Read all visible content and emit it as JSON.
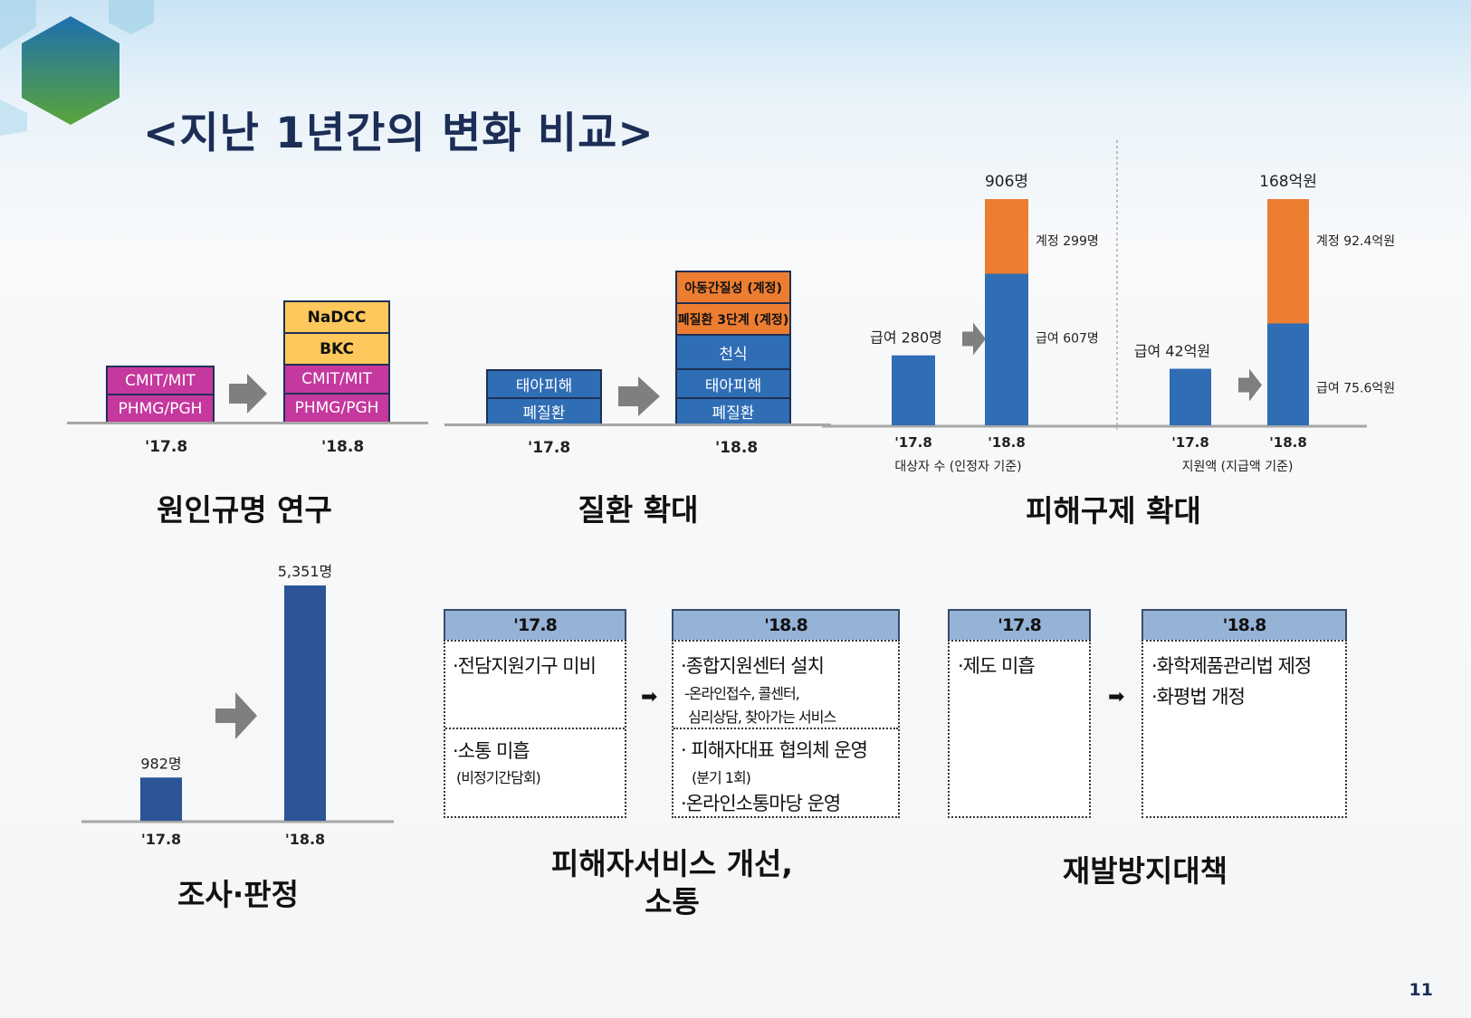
{
  "title": "<지난 1년간의 변화 비교>",
  "page_number": "11",
  "colors": {
    "magenta": "#c5389e",
    "yellow": "#ffc85c",
    "blue": "#2f6db5",
    "orange": "#ed7d31",
    "navy_bar": "#2c5496",
    "table_header": "#95b3d7"
  },
  "panel1": {
    "heading": "원인규명 연구",
    "before": {
      "tick": "'17.8",
      "boxes": [
        "CMIT/MIT",
        "PHMG/PGH"
      ]
    },
    "after": {
      "tick": "'18.8",
      "boxes": [
        "NaDCC",
        "BKC",
        "CMIT/MIT",
        "PHMG/PGH"
      ]
    }
  },
  "panel2": {
    "heading": "질환 확대",
    "before": {
      "tick": "'17.8",
      "boxes": [
        "태아피해",
        "폐질환"
      ]
    },
    "after": {
      "tick": "'18.8",
      "boxes": [
        "아동간질성 (계정)",
        "폐질환 3단계 (계정)",
        "천식",
        "태아피해",
        "폐질환"
      ]
    }
  },
  "panel3": {
    "heading": "피해구제 확대",
    "chart_data": [
      {
        "type": "bar",
        "categories": [
          "'17.8",
          "'18.8"
        ],
        "xlabel": "대상자 수 (인정자 기준)",
        "series": [
          {
            "name": "급여",
            "values": [
              280,
              607
            ]
          },
          {
            "name": "계정",
            "values": [
              0,
              299
            ]
          }
        ],
        "totals": [
          "",
          "906명"
        ],
        "labels": {
          "before_total": "급여 280명",
          "after_base": "급여 607명",
          "after_top": "계정 299명"
        },
        "ylim": [
          0,
          906
        ]
      },
      {
        "type": "bar",
        "categories": [
          "'17.8",
          "'18.8"
        ],
        "xlabel": "지원액 (지급액 기준)",
        "series": [
          {
            "name": "급여",
            "values": [
              42,
              75.6
            ]
          },
          {
            "name": "계정",
            "values": [
              0,
              92.4
            ]
          }
        ],
        "totals": [
          "",
          "168억원"
        ],
        "labels": {
          "before_total": "급여 42억원",
          "after_base": "급여 75.6억원",
          "after_top": "계정 92.4억원"
        },
        "ylim": [
          0,
          168
        ]
      }
    ]
  },
  "panel4": {
    "heading": "조사·판정",
    "chart_data": {
      "type": "bar",
      "categories": [
        "'17.8",
        "'18.8"
      ],
      "values": [
        982,
        5351
      ],
      "value_labels": [
        "982명",
        "5,351명"
      ],
      "ylim": [
        0,
        5351
      ]
    }
  },
  "panel5": {
    "heading_line1": "피해자서비스 개선,",
    "heading_line2": "소통",
    "before_header": "'17.8",
    "after_header": "'18.8",
    "before_row1": "·전담지원기구 미비",
    "before_row2": "·소통 미흡",
    "before_row2_sub": "(비정기간담회)",
    "after_row1": "·종합지원센터 설치",
    "after_row1_sub1": "-온라인접수, 콜센터,",
    "after_row1_sub2": "심리상담, 찾아가는 서비스",
    "after_row2": "· 피해자대표 협의체 운영",
    "after_row2_sub": "(분기 1회)",
    "after_row3": "·온라인소통마당 운영",
    "arrow": "➡"
  },
  "panel6": {
    "heading": "재발방지대책",
    "before_header": "'17.8",
    "after_header": "'18.8",
    "before_row1": "·제도 미흡",
    "after_row1": "·화학제품관리법 제정",
    "after_row2": "·화평법 개정",
    "arrow": "➡"
  }
}
